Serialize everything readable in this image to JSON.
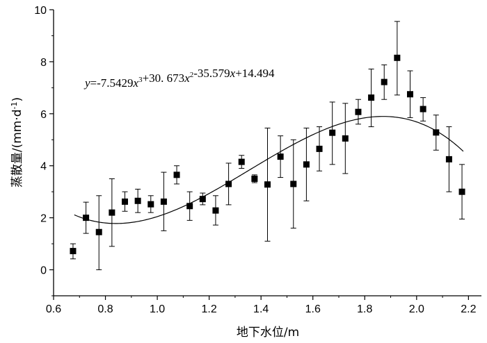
{
  "chart_data": {
    "type": "scatter",
    "xlabel": "地下水位/m",
    "ylabel": "蒸散量/(mm·d-1)",
    "xlim": [
      0.6,
      2.25
    ],
    "ylim": [
      -1,
      10
    ],
    "xticks": [
      0.6,
      0.8,
      1.0,
      1.2,
      1.4,
      1.6,
      1.8,
      2.0,
      2.2
    ],
    "xtick_labels": [
      "0.6",
      "0.8",
      "1.0",
      "1.2",
      "1.4",
      "1.6",
      "1.8",
      "2.0",
      "2.2"
    ],
    "yticks": [
      0,
      2,
      4,
      6,
      8,
      10
    ],
    "ytick_labels": [
      "0",
      "2",
      "4",
      "6",
      "8",
      "10"
    ],
    "grid": false,
    "annotation": "y=-7.5429x3+30. 673x2-35.579x+14.494",
    "fit": {
      "coefficients": [
        -7.5429,
        30.673,
        -35.579,
        14.494
      ],
      "x_range": [
        0.68,
        2.18
      ]
    },
    "points": [
      {
        "x": 0.675,
        "y": 0.72,
        "err_low": 0.42,
        "err_high": 1.0
      },
      {
        "x": 0.725,
        "y": 2.0,
        "err_low": 1.4,
        "err_high": 2.6
      },
      {
        "x": 0.775,
        "y": 1.45,
        "err_low": 0.0,
        "err_high": 2.85
      },
      {
        "x": 0.825,
        "y": 2.2,
        "err_low": 0.9,
        "err_high": 3.5
      },
      {
        "x": 0.875,
        "y": 2.62,
        "err_low": 2.25,
        "err_high": 3.0
      },
      {
        "x": 0.925,
        "y": 2.65,
        "err_low": 2.2,
        "err_high": 3.1
      },
      {
        "x": 0.975,
        "y": 2.52,
        "err_low": 2.2,
        "err_high": 2.85
      },
      {
        "x": 1.025,
        "y": 2.62,
        "err_low": 1.5,
        "err_high": 3.75
      },
      {
        "x": 1.075,
        "y": 3.65,
        "err_low": 3.3,
        "err_high": 4.0
      },
      {
        "x": 1.125,
        "y": 2.45,
        "err_low": 1.9,
        "err_high": 3.0
      },
      {
        "x": 1.175,
        "y": 2.72,
        "err_low": 2.5,
        "err_high": 2.95
      },
      {
        "x": 1.225,
        "y": 2.28,
        "err_low": 1.72,
        "err_high": 2.85
      },
      {
        "x": 1.275,
        "y": 3.3,
        "err_low": 2.5,
        "err_high": 4.1
      },
      {
        "x": 1.325,
        "y": 4.15,
        "err_low": 3.9,
        "err_high": 4.4
      },
      {
        "x": 1.375,
        "y": 3.5,
        "err_low": 3.35,
        "err_high": 3.65
      },
      {
        "x": 1.425,
        "y": 3.28,
        "err_low": 1.1,
        "err_high": 5.45
      },
      {
        "x": 1.475,
        "y": 4.35,
        "err_low": 3.55,
        "err_high": 5.15
      },
      {
        "x": 1.525,
        "y": 3.3,
        "err_low": 1.6,
        "err_high": 5.0
      },
      {
        "x": 1.575,
        "y": 4.05,
        "err_low": 2.65,
        "err_high": 5.45
      },
      {
        "x": 1.625,
        "y": 4.65,
        "err_low": 3.8,
        "err_high": 5.5
      },
      {
        "x": 1.675,
        "y": 5.27,
        "err_low": 4.05,
        "err_high": 6.45
      },
      {
        "x": 1.725,
        "y": 5.05,
        "err_low": 3.7,
        "err_high": 6.4
      },
      {
        "x": 1.775,
        "y": 6.07,
        "err_low": 5.6,
        "err_high": 6.55
      },
      {
        "x": 1.825,
        "y": 6.62,
        "err_low": 5.5,
        "err_high": 7.72
      },
      {
        "x": 1.875,
        "y": 7.22,
        "err_low": 6.55,
        "err_high": 7.88
      },
      {
        "x": 1.925,
        "y": 8.15,
        "err_low": 6.72,
        "err_high": 9.55
      },
      {
        "x": 1.975,
        "y": 6.75,
        "err_low": 5.85,
        "err_high": 7.65
      },
      {
        "x": 2.025,
        "y": 6.18,
        "err_low": 5.72,
        "err_high": 6.62
      },
      {
        "x": 2.075,
        "y": 5.28,
        "err_low": 4.6,
        "err_high": 5.95
      },
      {
        "x": 2.125,
        "y": 4.25,
        "err_low": 3.0,
        "err_high": 5.5
      },
      {
        "x": 2.175,
        "y": 3.0,
        "err_low": 1.95,
        "err_high": 4.05
      }
    ]
  }
}
